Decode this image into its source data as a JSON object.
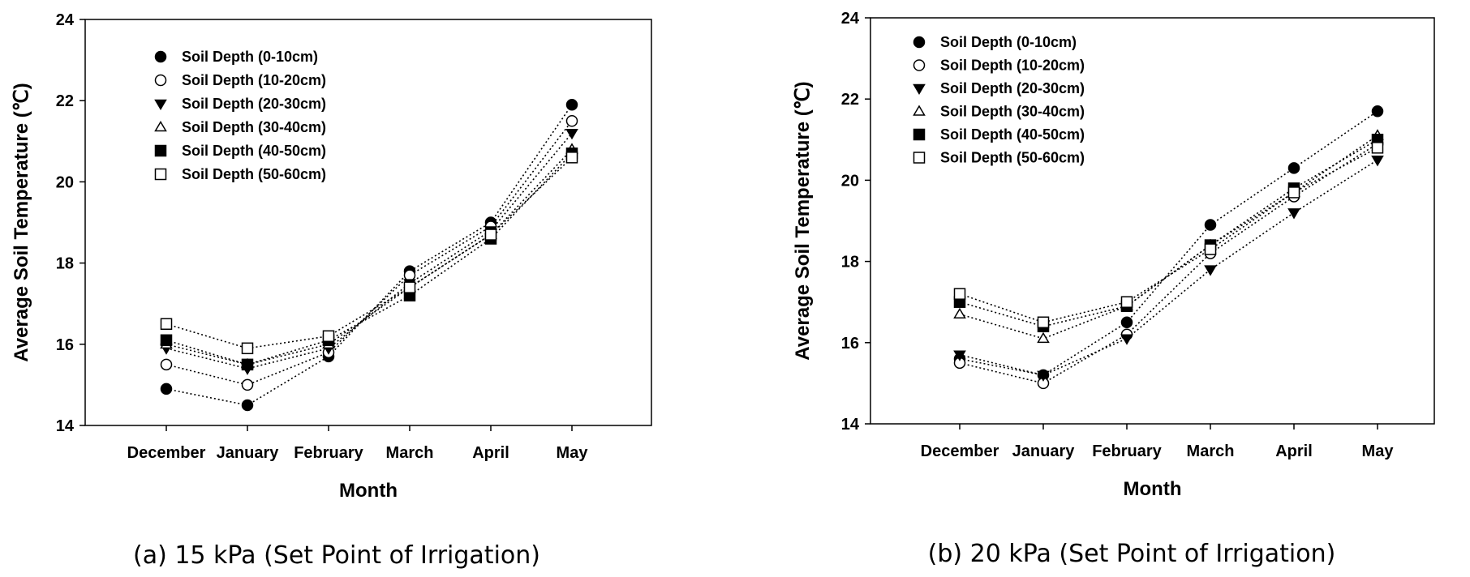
{
  "chart_data": [
    {
      "type": "line",
      "caption": "(a) 15 kPa (Set Point of Irrigation)",
      "xlabel": "Month",
      "ylabel": "Average Soil Temperature (℃)",
      "categories": [
        "December",
        "January",
        "February",
        "March",
        "April",
        "May"
      ],
      "ylim": [
        14,
        24
      ],
      "yticks": [
        "14",
        "16",
        "18",
        "20",
        "22",
        "24"
      ],
      "grid": false,
      "legend_position": "top-left",
      "series": [
        {
          "name": "Soil Depth (0-10cm)",
          "marker": "circle-filled",
          "values": [
            14.9,
            14.5,
            15.7,
            17.8,
            19.0,
            21.9
          ]
        },
        {
          "name": "Soil Depth (10-20cm)",
          "marker": "circle-open",
          "values": [
            15.5,
            15.0,
            15.8,
            17.7,
            18.9,
            21.5
          ]
        },
        {
          "name": "Soil Depth (20-30cm)",
          "marker": "triangle-down-filled",
          "values": [
            15.9,
            15.4,
            15.9,
            17.5,
            18.8,
            21.2
          ]
        },
        {
          "name": "Soil Depth (30-40cm)",
          "marker": "triangle-up-open",
          "values": [
            16.0,
            15.5,
            16.0,
            17.4,
            18.7,
            20.8
          ]
        },
        {
          "name": "Soil Depth (40-50cm)",
          "marker": "square-filled",
          "values": [
            16.1,
            15.5,
            16.1,
            17.2,
            18.6,
            20.7
          ]
        },
        {
          "name": "Soil Depth (50-60cm)",
          "marker": "square-open",
          "values": [
            16.5,
            15.9,
            16.2,
            17.4,
            18.7,
            20.6
          ]
        }
      ]
    },
    {
      "type": "line",
      "caption": "(b) 20 kPa (Set Point of Irrigation)",
      "xlabel": "Month",
      "ylabel": "Average Soil Temperature (℃)",
      "categories": [
        "December",
        "January",
        "February",
        "March",
        "April",
        "May"
      ],
      "ylim": [
        14,
        24
      ],
      "yticks": [
        "14",
        "16",
        "18",
        "20",
        "22",
        "24"
      ],
      "grid": false,
      "legend_position": "top-left",
      "series": [
        {
          "name": "Soil Depth (0-10cm)",
          "marker": "circle-filled",
          "values": [
            15.6,
            15.2,
            16.5,
            18.9,
            20.3,
            21.7
          ]
        },
        {
          "name": "Soil Depth (10-20cm)",
          "marker": "circle-open",
          "values": [
            15.5,
            15.0,
            16.2,
            18.2,
            19.6,
            20.9
          ]
        },
        {
          "name": "Soil Depth (20-30cm)",
          "marker": "triangle-down-filled",
          "values": [
            15.7,
            15.2,
            16.1,
            17.8,
            19.2,
            20.5
          ]
        },
        {
          "name": "Soil Depth (30-40cm)",
          "marker": "triangle-up-open",
          "values": [
            16.7,
            16.1,
            16.9,
            18.4,
            19.7,
            21.1
          ]
        },
        {
          "name": "Soil Depth (40-50cm)",
          "marker": "square-filled",
          "values": [
            17.0,
            16.4,
            16.9,
            18.4,
            19.8,
            21.0
          ]
        },
        {
          "name": "Soil Depth (50-60cm)",
          "marker": "square-open",
          "values": [
            17.2,
            16.5,
            17.0,
            18.3,
            19.7,
            20.8
          ]
        }
      ]
    }
  ]
}
